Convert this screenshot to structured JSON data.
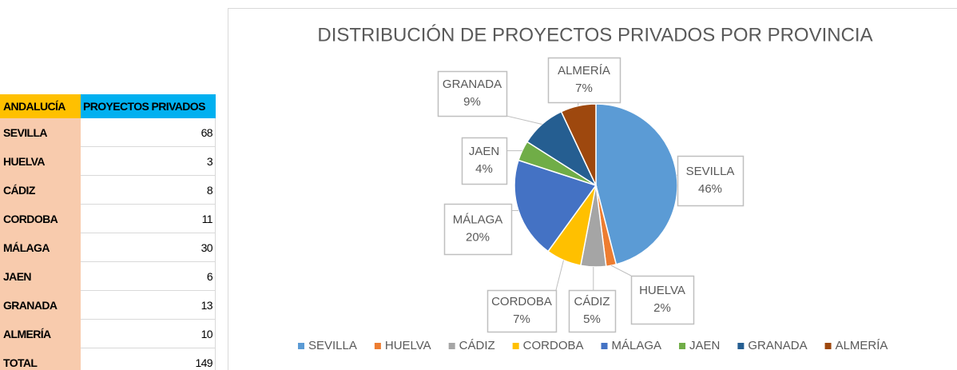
{
  "table": {
    "header": [
      "ANDALUCÍA",
      "PROYECTOS PRIVADOS"
    ],
    "rows": [
      [
        "SEVILLA",
        "68"
      ],
      [
        "HUELVA",
        "3"
      ],
      [
        "CÁDIZ",
        "8"
      ],
      [
        "CORDOBA",
        "11"
      ],
      [
        "MÁLAGA",
        "30"
      ],
      [
        "JAEN",
        "6"
      ],
      [
        "GRANADA",
        "13"
      ],
      [
        "ALMERÍA",
        "10"
      ],
      [
        "TOTAL",
        "149"
      ]
    ]
  },
  "chart_data": {
    "type": "pie",
    "title": "DISTRIBUCIÓN DE PROYECTOS PRIVADOS POR PROVINCIA",
    "categories": [
      "SEVILLA",
      "HUELVA",
      "CÁDIZ",
      "CORDOBA",
      "MÁLAGA",
      "JAEN",
      "GRANADA",
      "ALMERÍA"
    ],
    "values": [
      46,
      2,
      5,
      7,
      20,
      4,
      9,
      7
    ],
    "value_labels": [
      "46%",
      "2%",
      "5%",
      "7%",
      "20%",
      "4%",
      "9%",
      "7%"
    ],
    "colors": [
      "#5b9bd5",
      "#ed7d31",
      "#a5a5a5",
      "#ffc000",
      "#4472c4",
      "#70ad47",
      "#255e91",
      "#9e480e"
    ],
    "legend": "bottom"
  }
}
